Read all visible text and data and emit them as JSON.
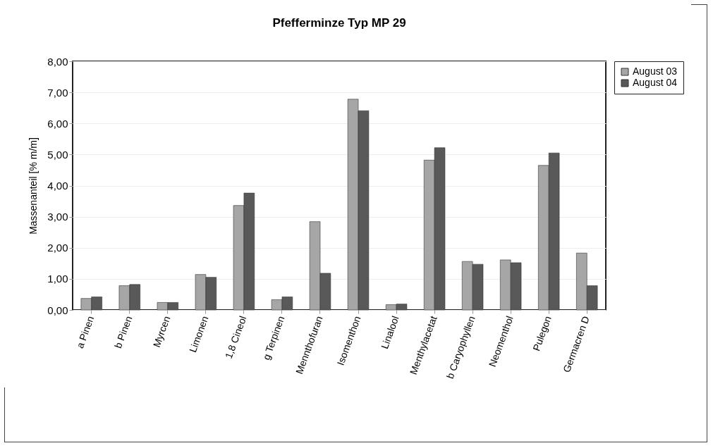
{
  "chart_data": {
    "type": "bar",
    "title": "Pfefferminze Typ MP 29",
    "ylabel": "Massenanteil [% m/m]",
    "categories": [
      "a Pinen",
      "b Pinen",
      "Myrcen",
      "Limonen",
      "1,8 Cineol",
      "g Terpinen",
      "Mennthofuran",
      "Isomenthon",
      "Linalool",
      "Menthylacetat",
      "b Caryophyllen",
      "Neomenthol",
      "Pulegon",
      "Germacren D"
    ],
    "series": [
      {
        "name": "August 03",
        "color": "#a6a6a6",
        "values": [
          0.37,
          0.78,
          0.24,
          1.14,
          3.36,
          0.33,
          2.84,
          6.78,
          0.17,
          4.82,
          1.56,
          1.61,
          4.65,
          1.83
        ]
      },
      {
        "name": "August 04",
        "color": "#595959",
        "values": [
          0.42,
          0.82,
          0.24,
          1.05,
          3.76,
          0.42,
          1.18,
          6.41,
          0.19,
          5.22,
          1.47,
          1.52,
          5.05,
          0.78
        ]
      }
    ],
    "ylim": [
      0,
      8
    ],
    "yticks": [
      {
        "value": 0,
        "label": "0,00"
      },
      {
        "value": 1,
        "label": "1,00"
      },
      {
        "value": 2,
        "label": "2,00"
      },
      {
        "value": 3,
        "label": "3,00"
      },
      {
        "value": 4,
        "label": "4,00"
      },
      {
        "value": 5,
        "label": "5,00"
      },
      {
        "value": 6,
        "label": "6,00"
      },
      {
        "value": 7,
        "label": "7,00"
      },
      {
        "value": 8,
        "label": "8,00"
      }
    ],
    "grid": "y",
    "legend": "right"
  }
}
